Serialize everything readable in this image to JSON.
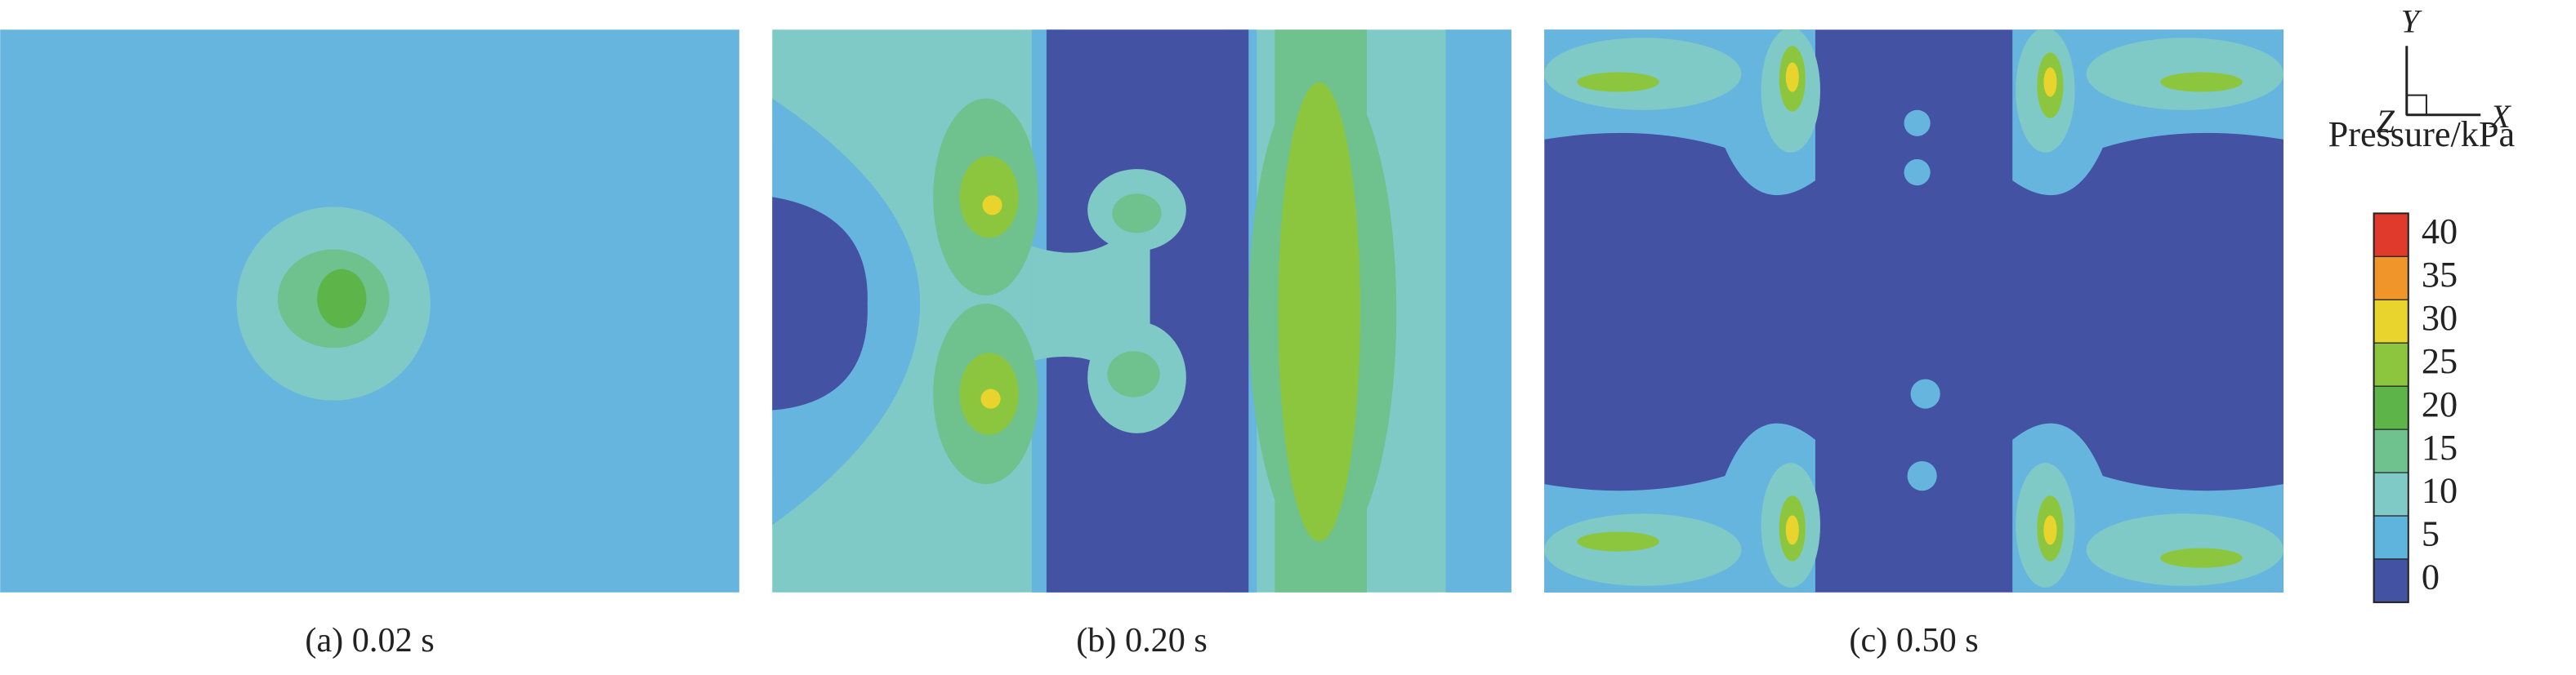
{
  "panels": [
    {
      "caption": "(a) 0.02 s"
    },
    {
      "caption": "(b) 0.20 s"
    },
    {
      "caption": "(c) 0.50 s"
    }
  ],
  "axes": {
    "y": "Y",
    "x": "X",
    "z": "Z"
  },
  "colorbar": {
    "title": "Pressure/kPa",
    "levels": [
      {
        "value": 40,
        "color": "#e03a2c"
      },
      {
        "value": 35,
        "color": "#f0952a"
      },
      {
        "value": 30,
        "color": "#e8d42c"
      },
      {
        "value": 25,
        "color": "#8cc63f"
      },
      {
        "value": 20,
        "color": "#5db54a"
      },
      {
        "value": 15,
        "color": "#6fc18e"
      },
      {
        "value": 10,
        "color": "#7fcac6"
      },
      {
        "value": 5,
        "color": "#5fb4de"
      },
      {
        "value": 0,
        "color": "#4452a3"
      }
    ]
  }
}
